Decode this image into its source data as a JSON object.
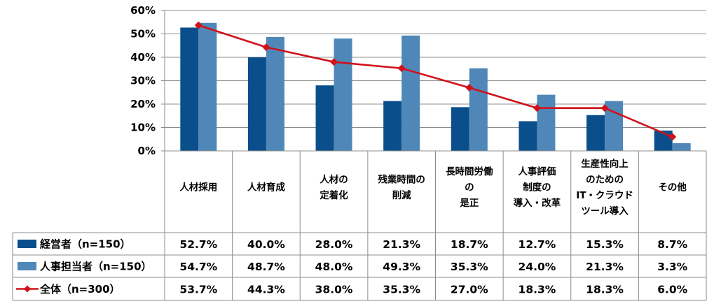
{
  "chart_data": {
    "type": "bar",
    "categories": [
      [
        "人材採用"
      ],
      [
        "人材育成"
      ],
      [
        "人材の",
        "定着化"
      ],
      [
        "残業時間の",
        "削減"
      ],
      [
        "長時間労働",
        "の",
        "是正"
      ],
      [
        "人事評価",
        "制度の",
        "導入・改革"
      ],
      [
        "生産性向上",
        "のための",
        "IT・クラウド",
        "ツール導入"
      ],
      [
        "その他"
      ]
    ],
    "series": [
      {
        "name": "経営者（n=150）",
        "type": "bar",
        "color": "#0a4f8c",
        "values": [
          52.7,
          40.0,
          28.0,
          21.3,
          18.7,
          12.7,
          15.3,
          8.7
        ],
        "labels": [
          "52.7%",
          "40.0%",
          "28.0%",
          "21.3%",
          "18.7%",
          "12.7%",
          "15.3%",
          "8.7%"
        ]
      },
      {
        "name": "人事担当者（n=150）",
        "type": "bar",
        "color": "#4f88b8",
        "values": [
          54.7,
          48.7,
          48.0,
          49.3,
          35.3,
          24.0,
          21.3,
          3.3
        ],
        "labels": [
          "54.7%",
          "48.7%",
          "48.0%",
          "49.3%",
          "35.3%",
          "24.0%",
          "21.3%",
          "3.3%"
        ]
      },
      {
        "name": "全体（n=300）",
        "type": "line",
        "color": "#d0121b",
        "marker": "diamond",
        "values": [
          53.7,
          44.3,
          38.0,
          35.3,
          27.0,
          18.3,
          18.3,
          6.0
        ],
        "labels": [
          "53.7%",
          "44.3%",
          "38.0%",
          "35.3%",
          "27.0%",
          "18.3%",
          "18.3%",
          "6.0%"
        ]
      }
    ],
    "ylim": [
      0,
      60
    ],
    "yticks": [
      0,
      10,
      20,
      30,
      40,
      50,
      60
    ],
    "ytick_labels": [
      "0%",
      "10%",
      "20%",
      "30%",
      "40%",
      "50%",
      "60%"
    ],
    "grid": true,
    "legend": "data-table-left",
    "title": "",
    "xlabel": "",
    "ylabel": ""
  }
}
